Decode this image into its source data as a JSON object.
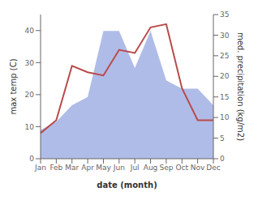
{
  "chart_data": {
    "type": "line",
    "xlabel": "date (month)",
    "ylabel": "max temp (C)",
    "y2label": "med. precipitation (kg/m2)",
    "categories": [
      "Jan",
      "Feb",
      "Mar",
      "Apr",
      "May",
      "Jun",
      "Jul",
      "Aug",
      "Sep",
      "Oct",
      "Nov",
      "Dec"
    ],
    "ylim": [
      0,
      45
    ],
    "yticks": [
      0,
      10,
      20,
      30,
      40
    ],
    "y2lim": [
      0,
      35
    ],
    "y2ticks": [
      0,
      5,
      10,
      15,
      20,
      25,
      30,
      35
    ],
    "grid": false,
    "series": [
      {
        "type": "area",
        "axis": "y2",
        "color": "#b0bce8",
        "values": [
          7,
          9,
          13,
          15,
          31,
          31,
          22,
          31,
          19,
          17,
          17,
          13
        ]
      },
      {
        "type": "line",
        "color": "#b94a4a",
        "values": [
          8,
          12,
          29,
          27,
          26,
          34,
          33,
          41,
          42,
          22,
          12,
          12
        ]
      }
    ]
  }
}
